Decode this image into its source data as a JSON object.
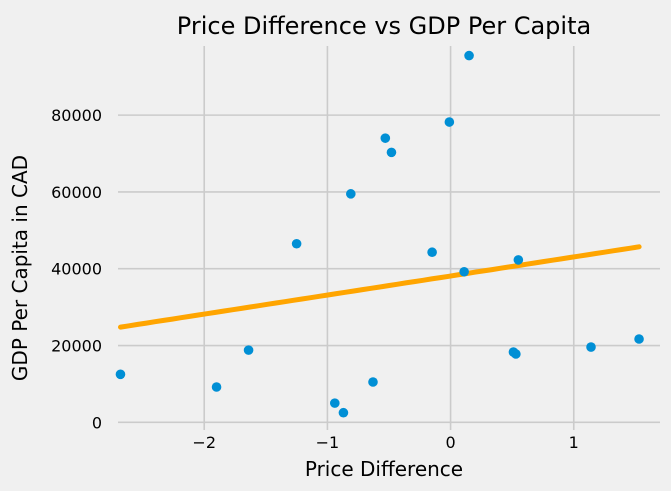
{
  "chart_data": {
    "type": "scatter",
    "title": "Price Difference vs GDP Per Capita",
    "xlabel": "Price Difference",
    "ylabel": "GDP Per Capita in CAD",
    "xlim": [
      -2.7,
      1.7
    ],
    "ylim": [
      -2000,
      98000
    ],
    "xticks": [
      -2,
      -1,
      0,
      1
    ],
    "xtick_labels": [
      "−2",
      "−1",
      "0",
      "1"
    ],
    "yticks": [
      0,
      20000,
      40000,
      60000,
      80000
    ],
    "ytick_labels": [
      "0",
      "20000",
      "40000",
      "60000",
      "80000"
    ],
    "grid": true,
    "series": [
      {
        "kind": "points",
        "color": "#008fd5",
        "x": [
          -2.68,
          -1.9,
          -1.64,
          -1.25,
          -0.94,
          -0.87,
          -0.81,
          -0.63,
          -0.53,
          -0.48,
          -0.15,
          -0.01,
          0.11,
          0.15,
          0.51,
          0.53,
          0.55,
          1.14,
          1.53
        ],
        "y": [
          12500,
          9200,
          18800,
          46500,
          5000,
          2500,
          59500,
          10500,
          74000,
          70300,
          44300,
          78200,
          39200,
          95500,
          18300,
          17800,
          42300,
          19600,
          21700
        ]
      },
      {
        "kind": "fit-line",
        "color": "#ffa500",
        "x": [
          -2.68,
          1.53
        ],
        "y": [
          24800,
          45700
        ]
      }
    ]
  }
}
